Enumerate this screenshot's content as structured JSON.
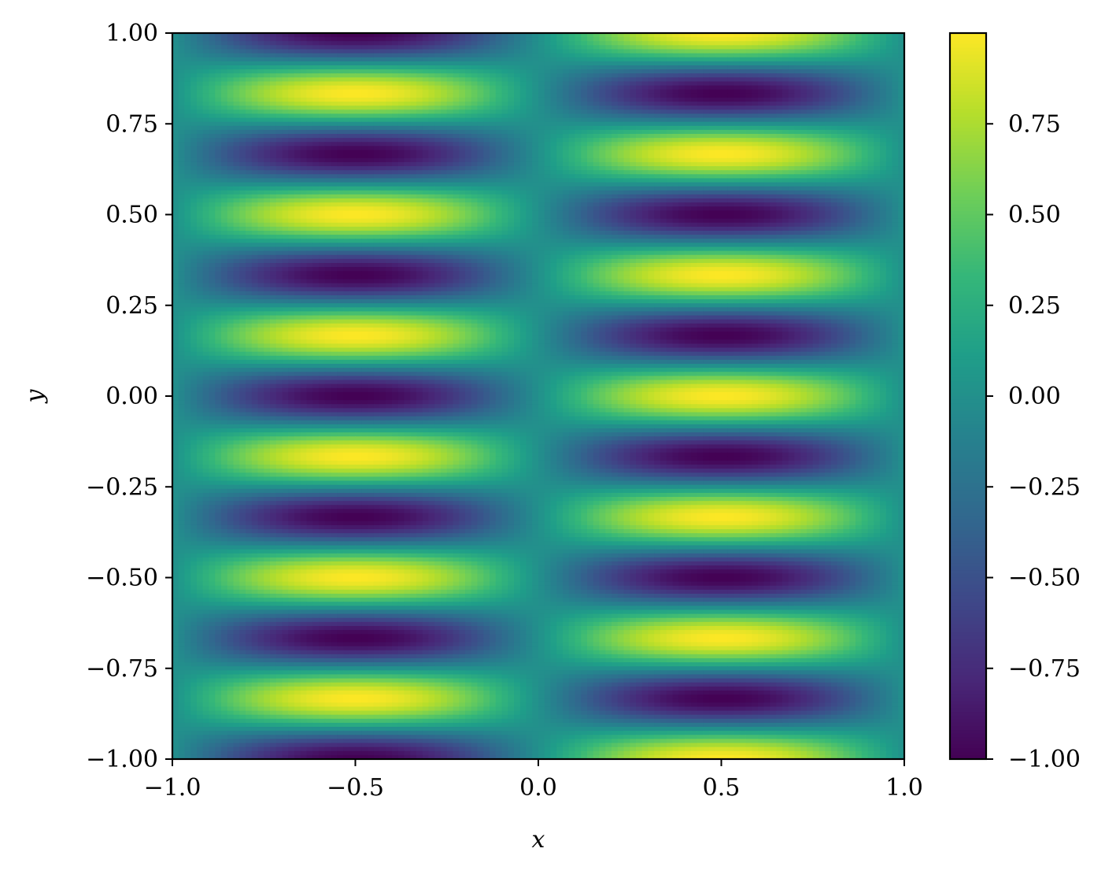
{
  "chart_data": {
    "type": "heatmap",
    "title": "",
    "xlabel": "x",
    "ylabel": "y",
    "xlim": [
      -1.0,
      1.0
    ],
    "ylim": [
      -1.0,
      1.0
    ],
    "x_ticks": [
      -1.0,
      -0.5,
      0.0,
      0.5,
      1.0
    ],
    "x_tick_labels": [
      "−1.0",
      "−0.5",
      "0.0",
      "0.5",
      "1.0"
    ],
    "y_ticks": [
      -1.0,
      -0.75,
      -0.5,
      -0.25,
      0.0,
      0.25,
      0.5,
      0.75,
      1.0
    ],
    "y_tick_labels": [
      "−1.00",
      "−0.75",
      "−0.50",
      "−0.25",
      "0.00",
      "0.25",
      "0.50",
      "0.75",
      "1.00"
    ],
    "colormap": "viridis",
    "colorbar": {
      "range": [
        -1.0,
        1.0
      ],
      "ticks": [
        -1.0,
        -0.75,
        -0.5,
        -0.25,
        0.0,
        0.25,
        0.5,
        0.75
      ],
      "tick_labels": [
        "−1.00",
        "−0.75",
        "−0.50",
        "−0.25",
        "0.00",
        "0.25",
        "0.50",
        "0.75"
      ]
    },
    "grid": false,
    "field": {
      "description_formula": "z = sin(pi*x) * cos(6*pi*y)",
      "samples_x": [
        -1.0,
        -0.5,
        0.0,
        0.5,
        1.0
      ],
      "samples_y": [
        1.0,
        0.9167,
        0.75,
        0.5833,
        0.4167,
        0.25,
        0.0833,
        -0.0833,
        -0.25,
        -0.4167,
        -0.5833,
        -0.75,
        -0.9167
      ],
      "peak_rows_left_yellow": [
        0.9167,
        0.5833,
        0.25,
        -0.0833,
        -0.4167,
        -0.75
      ],
      "peak_rows_left_purple": [
        0.75,
        0.4167,
        0.0833,
        -0.25,
        -0.5833,
        -0.9167
      ]
    }
  },
  "colors": {
    "viridis_stops": [
      "#440154",
      "#482878",
      "#3e4989",
      "#31688e",
      "#26828e",
      "#1f9e89",
      "#35b779",
      "#6ece58",
      "#b5de2b",
      "#fde725"
    ]
  }
}
